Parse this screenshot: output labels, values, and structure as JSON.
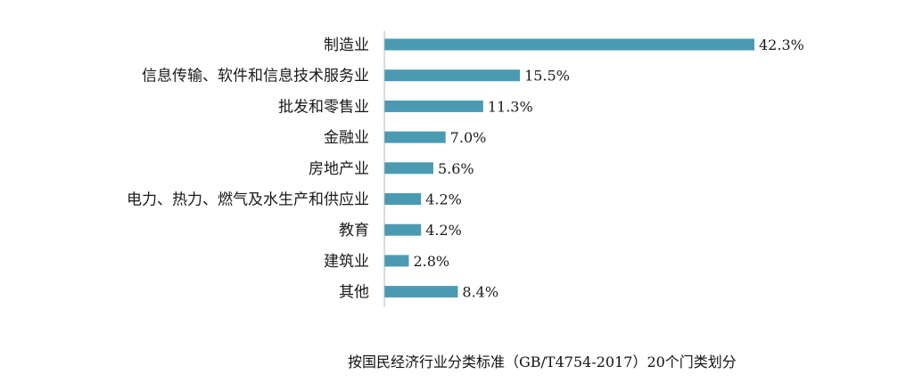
{
  "chart_data": {
    "type": "bar",
    "orientation": "horizontal",
    "categories": [
      "制造业",
      "信息传输、软件和信息技术服务业",
      "批发和零售业",
      "金融业",
      "房地产业",
      "电力、热力、燃气及水生产和供应业",
      "教育",
      "建筑业",
      "其他"
    ],
    "values": [
      42.3,
      15.5,
      11.3,
      7.0,
      5.6,
      4.2,
      4.2,
      2.8,
      8.4
    ],
    "value_labels": [
      "42.3%",
      "15.5%",
      "11.3%",
      "7.0%",
      "5.6%",
      "4.2%",
      "4.2%",
      "2.8%",
      "8.4%"
    ],
    "unit": "%",
    "bar_color": "#4a9bb2",
    "grid": false,
    "legend": "none",
    "note": "按国民经济行业分类标准（GB/T4754-2017）20个门类划分"
  }
}
